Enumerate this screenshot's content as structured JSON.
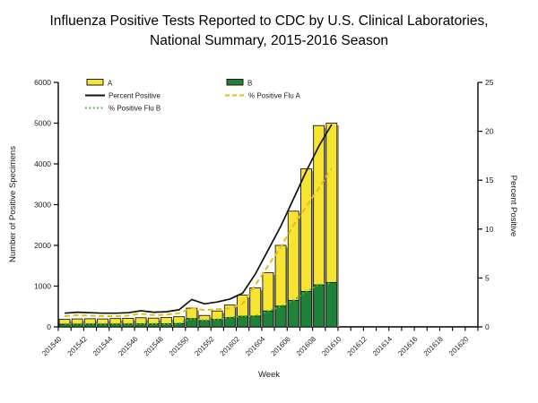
{
  "title": {
    "line1": "Influenza Positive Tests Reported to CDC by U.S. Clinical Laboratories,",
    "line2": "National Summary, 2015-2016 Season"
  },
  "chart_data": {
    "type": "combo-stacked-bar-line",
    "x_axis": {
      "label": "Week",
      "weeks": [
        "201540",
        "201541",
        "201542",
        "201543",
        "201544",
        "201545",
        "201546",
        "201547",
        "201548",
        "201549",
        "201550",
        "201551",
        "201552",
        "201601",
        "201602",
        "201603",
        "201604",
        "201605",
        "201606",
        "201607",
        "201608",
        "201609",
        "201610",
        "201611",
        "201612",
        "201613",
        "201614",
        "201615",
        "201616",
        "201617",
        "201618",
        "201619",
        "201620"
      ],
      "labeled_ticks": [
        "201540",
        "201542",
        "201544",
        "201546",
        "201548",
        "201550",
        "201552",
        "201602",
        "201604",
        "201606",
        "201608",
        "201610",
        "201612",
        "201614",
        "201616",
        "201618",
        "201620"
      ]
    },
    "left_axis": {
      "label": "Number of Positive Specimens",
      "min": 0,
      "max": 6000,
      "step": 1000
    },
    "right_axis": {
      "label": "Percent Positive",
      "min": 0,
      "max": 25,
      "step": 5
    },
    "bar_weeks": [
      "201540",
      "201541",
      "201542",
      "201543",
      "201544",
      "201545",
      "201546",
      "201547",
      "201548",
      "201549",
      "201550",
      "201551",
      "201552",
      "201601",
      "201602",
      "201603",
      "201604",
      "201605",
      "201606",
      "201607",
      "201608",
      "201609"
    ],
    "series": [
      {
        "name": "A",
        "type": "stacked-bar",
        "color": "#F7E431",
        "values": [
          120,
          128,
          130,
          127,
          135,
          138,
          150,
          142,
          153,
          168,
          255,
          126,
          207,
          309,
          520,
          690,
          940,
          1490,
          2190,
          3010,
          3910,
          3910
        ]
      },
      {
        "name": "B",
        "type": "stacked-bar",
        "color": "#1E8239",
        "values": [
          65,
          67,
          70,
          68,
          70,
          72,
          75,
          73,
          77,
          82,
          205,
          154,
          183,
          227,
          260,
          265,
          390,
          510,
          650,
          870,
          1030,
          1090
        ]
      },
      {
        "name": "Percent Positive",
        "type": "line",
        "style": "solid",
        "axis": "right",
        "color": "#111111",
        "values": [
          1.4,
          1.5,
          1.45,
          1.4,
          1.4,
          1.45,
          1.65,
          1.5,
          1.55,
          1.75,
          2.8,
          2.35,
          2.55,
          2.85,
          3.45,
          5.4,
          7.85,
          10.3,
          13.1,
          15.9,
          18.5,
          20.7
        ]
      },
      {
        "name": "% Positive Flu A",
        "type": "line",
        "style": "dashed",
        "axis": "right",
        "color": "#E2BE1B",
        "values": [
          1.1,
          1.2,
          1.15,
          1.1,
          1.1,
          1.15,
          1.35,
          1.2,
          1.25,
          1.4,
          1.95,
          1.7,
          1.8,
          1.9,
          2.35,
          4.3,
          6.25,
          8.2,
          10.4,
          12.3,
          14.2,
          16.2
        ]
      },
      {
        "name": "% Positive Flu B",
        "type": "line",
        "style": "dotted",
        "axis": "right",
        "color": "#3FBF2E",
        "values": [
          0.3,
          0.3,
          0.3,
          0.3,
          0.3,
          0.3,
          0.3,
          0.3,
          0.3,
          0.35,
          0.85,
          0.65,
          0.75,
          0.95,
          1.1,
          1.1,
          1.6,
          2.1,
          2.7,
          3.6,
          4.3,
          4.5
        ]
      }
    ],
    "plot_style": {
      "bar_outline": "#1a1a1a",
      "bar_shadow": "#9a9a9a",
      "axis_color": "#000000",
      "grid": "off",
      "legend_position": "top-left-inside"
    }
  }
}
